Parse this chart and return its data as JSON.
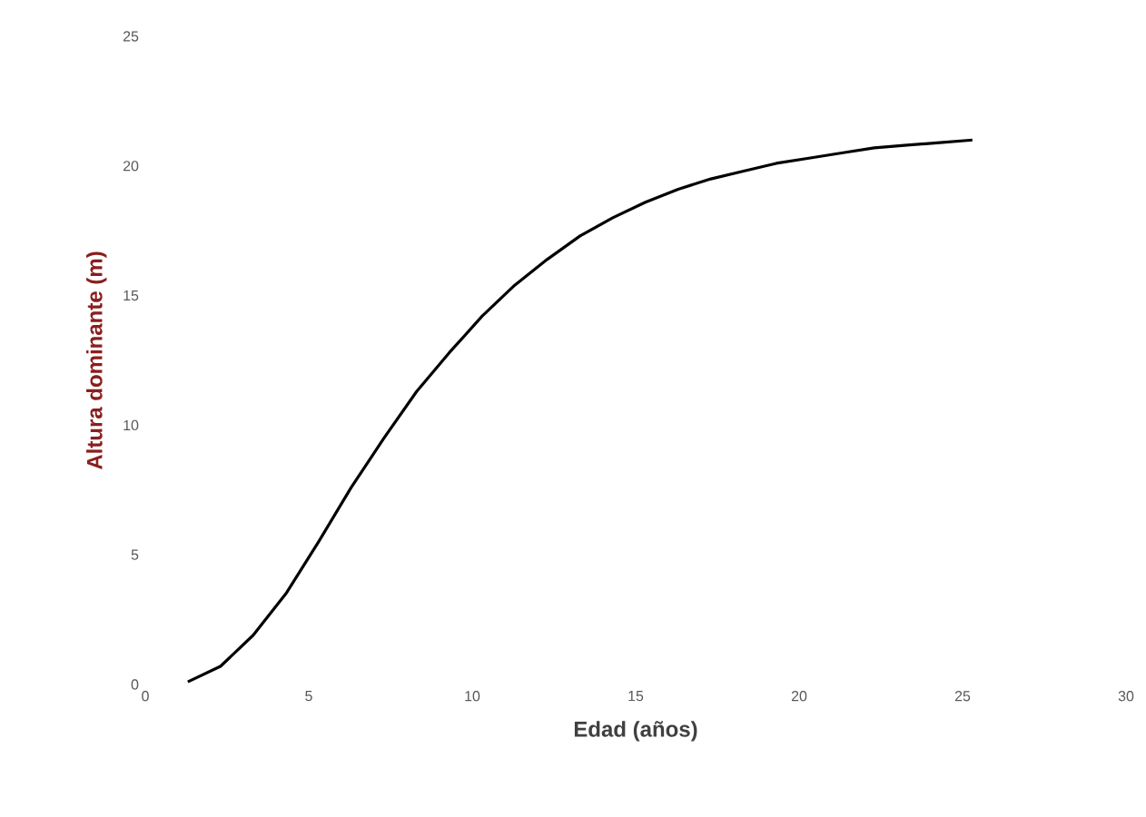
{
  "chart_data": {
    "type": "line",
    "xlabel": "Edad  (años)",
    "ylabel": "Altura dominante (m)",
    "xlim": [
      0,
      30
    ],
    "ylim": [
      0,
      25
    ],
    "xticks": [
      0,
      5,
      10,
      15,
      20,
      25,
      30
    ],
    "yticks": [
      0,
      5,
      10,
      15,
      20,
      25
    ],
    "grid": false,
    "marker": "none",
    "line_style": "solid",
    "series": [
      {
        "color": "#000000",
        "x": [
          1.3,
          2.3,
          3.3,
          4.3,
          5.3,
          6.3,
          7.3,
          8.3,
          9.3,
          10.3,
          11.3,
          12.3,
          13.3,
          14.3,
          15.3,
          16.3,
          17.3,
          18.3,
          19.3,
          20.3,
          21.3,
          22.3,
          23.3,
          24.3,
          25.3
        ],
        "values": [
          0.1,
          0.7,
          1.9,
          3.5,
          5.5,
          7.6,
          9.5,
          11.3,
          12.8,
          14.2,
          15.4,
          16.4,
          17.3,
          18.0,
          18.6,
          19.1,
          19.5,
          19.8,
          20.1,
          20.3,
          20.5,
          20.7,
          20.8,
          20.9,
          21.0
        ]
      }
    ]
  }
}
